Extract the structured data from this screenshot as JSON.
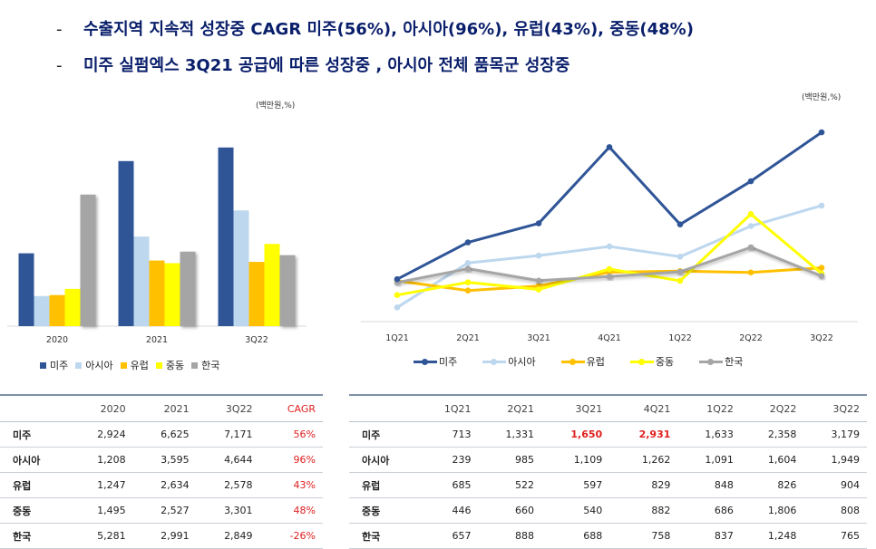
{
  "headline": {
    "dash": "-",
    "line1": "수출지역 지속적 성장중 CAGR 미주(56%), 아시아(96%), 유럽(43%), 중동(48%)",
    "line2": "미주 실펌엑스 3Q21 공급에 따른 성장중 , 아시아 전체 품목군 성장중"
  },
  "units": {
    "left": "(백만원,%)",
    "right": "(백만원,%)"
  },
  "colors": {
    "미주": "#2f5597",
    "아시아": "#bdd7ee",
    "유럽": "#ffc000",
    "중동": "#ffff00",
    "한국": "#a5a5a5"
  },
  "chart_data": [
    {
      "type": "bar",
      "categories": [
        "2020",
        "2021",
        "3Q22"
      ],
      "series": [
        {
          "name": "미주",
          "values": [
            2924,
            6625,
            7171
          ]
        },
        {
          "name": "아시아",
          "values": [
            1208,
            3595,
            4644
          ]
        },
        {
          "name": "유럽",
          "values": [
            1247,
            2634,
            2578
          ]
        },
        {
          "name": "중동",
          "values": [
            1495,
            2527,
            3301
          ]
        },
        {
          "name": "한국",
          "values": [
            5281,
            2991,
            2849
          ]
        }
      ],
      "ylim": [
        0,
        8000
      ],
      "legend": "bottom"
    },
    {
      "type": "line",
      "categories": [
        "1Q21",
        "2Q21",
        "3Q21",
        "4Q21",
        "1Q22",
        "2Q22",
        "3Q22"
      ],
      "series": [
        {
          "name": "미주",
          "values": [
            713,
            1331,
            1650,
            2931,
            1633,
            2358,
            3179
          ]
        },
        {
          "name": "아시아",
          "values": [
            239,
            985,
            1109,
            1262,
            1091,
            1604,
            1949
          ]
        },
        {
          "name": "유럽",
          "values": [
            685,
            522,
            597,
            829,
            848,
            826,
            904
          ]
        },
        {
          "name": "중동",
          "values": [
            446,
            660,
            540,
            882,
            686,
            1806,
            808
          ]
        },
        {
          "name": "한국",
          "values": [
            657,
            888,
            688,
            758,
            837,
            1248,
            765
          ]
        }
      ],
      "ylim": [
        0,
        3500
      ],
      "legend": "bottom"
    }
  ],
  "tables": {
    "left": {
      "headers": [
        "",
        "2020",
        "2021",
        "3Q22",
        "CAGR"
      ],
      "rows": [
        [
          "미주",
          "2,924",
          "6,625",
          "7,171",
          "56%"
        ],
        [
          "아시아",
          "1,208",
          "3,595",
          "4,644",
          "96%"
        ],
        [
          "유럽",
          "1,247",
          "2,634",
          "2,578",
          "43%"
        ],
        [
          "중동",
          "1,495",
          "2,527",
          "3,301",
          "48%"
        ],
        [
          "한국",
          "5,281",
          "2,991",
          "2,849",
          "-26%"
        ]
      ]
    },
    "right": {
      "headers": [
        "",
        "1Q21",
        "2Q21",
        "3Q21",
        "4Q21",
        "1Q22",
        "2Q22",
        "3Q22"
      ],
      "rows": [
        [
          "미주",
          "713",
          "1,331",
          "1,650",
          "2,931",
          "1,633",
          "2,358",
          "3,179"
        ],
        [
          "아시아",
          "239",
          "985",
          "1,109",
          "1,262",
          "1,091",
          "1,604",
          "1,949"
        ],
        [
          "유럽",
          "685",
          "522",
          "597",
          "829",
          "848",
          "826",
          "904"
        ],
        [
          "중동",
          "446",
          "660",
          "540",
          "882",
          "686",
          "1,806",
          "808"
        ],
        [
          "한국",
          "657",
          "888",
          "688",
          "758",
          "837",
          "1,248",
          "765"
        ]
      ]
    }
  }
}
